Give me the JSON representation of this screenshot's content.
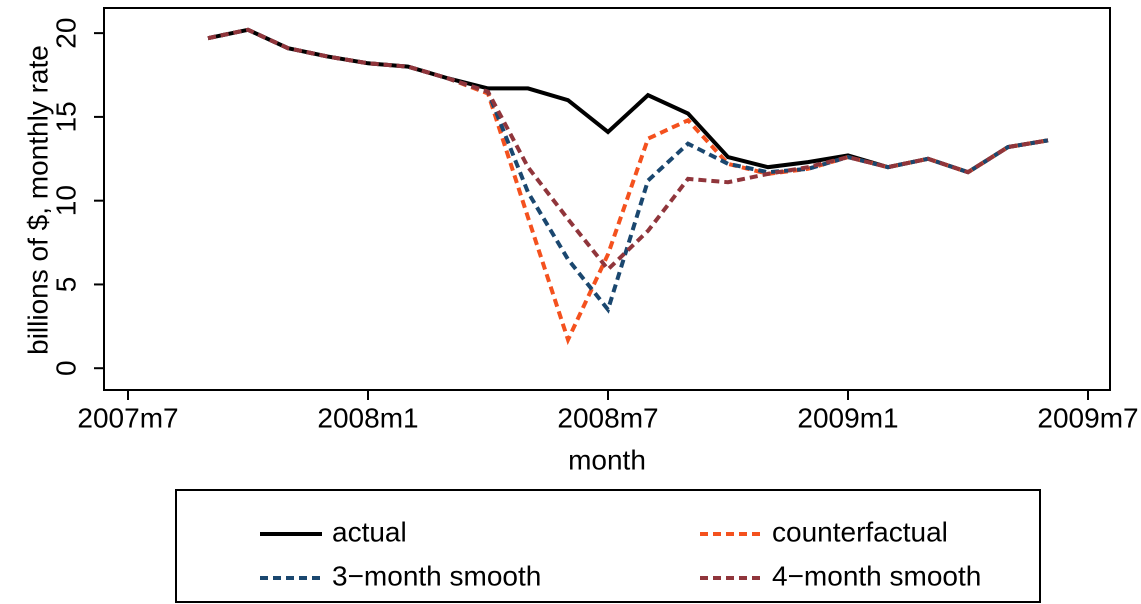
{
  "chart_data": {
    "type": "line",
    "y_label": "billions of $, monthly rate",
    "x_label": "month",
    "x": [
      572,
      573,
      574,
      575,
      576,
      577,
      578,
      579,
      580,
      581,
      582,
      583,
      584,
      585,
      586,
      587,
      588,
      589,
      590,
      591,
      592,
      593
    ],
    "xlim": [
      569.4,
      594.55
    ],
    "xticks": [
      {
        "value": 570,
        "label": "2007m7"
      },
      {
        "value": 576,
        "label": "2008m1"
      },
      {
        "value": 582,
        "label": "2008m7"
      },
      {
        "value": 588,
        "label": "2009m1"
      },
      {
        "value": 594,
        "label": "2009m7"
      }
    ],
    "ylim": [
      -1.3,
      21.5
    ],
    "yticks": [
      0,
      5,
      10,
      15,
      20
    ],
    "grid": false,
    "series": [
      {
        "name": "actual",
        "color": "#000000",
        "style": "solid",
        "values": [
          19.7,
          20.2,
          19.1,
          18.6,
          18.2,
          18.0,
          17.3,
          16.7,
          16.7,
          16.0,
          14.1,
          16.3,
          15.2,
          12.6,
          12.0,
          12.3,
          12.7,
          12.0,
          12.5,
          11.7,
          13.2,
          13.6
        ]
      },
      {
        "name": "counterfactual",
        "color": "#f4511e",
        "style": "dashed",
        "values": [
          19.7,
          20.2,
          19.1,
          18.6,
          18.2,
          18.0,
          17.3,
          16.4,
          9.0,
          1.7,
          6.8,
          13.7,
          14.8,
          12.2,
          11.6,
          11.9,
          12.6,
          12.0,
          12.5,
          11.7,
          13.2,
          13.6
        ]
      },
      {
        "name": "3−month smooth",
        "color": "#1a476f",
        "style": "dashed",
        "values": [
          19.7,
          20.2,
          19.1,
          18.6,
          18.2,
          18.0,
          17.3,
          16.5,
          10.5,
          6.5,
          3.5,
          11.2,
          13.4,
          12.2,
          11.7,
          11.9,
          12.6,
          12.0,
          12.5,
          11.7,
          13.2,
          13.6
        ]
      },
      {
        "name": "4−month smooth",
        "color": "#90353b",
        "style": "dashed",
        "values": [
          19.7,
          20.2,
          19.1,
          18.6,
          18.2,
          18.0,
          17.3,
          16.5,
          12.0,
          8.9,
          5.9,
          8.2,
          11.3,
          11.1,
          11.6,
          12.0,
          12.6,
          12.0,
          12.5,
          11.7,
          13.2,
          13.6
        ]
      }
    ]
  }
}
